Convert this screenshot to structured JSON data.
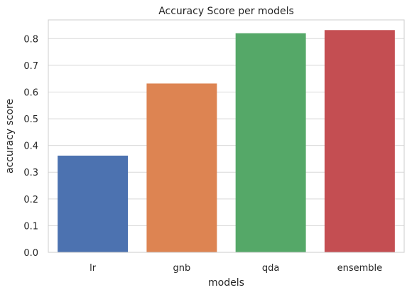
{
  "chart_data": {
    "type": "bar",
    "title": "Accuracy Score per models",
    "xlabel": "models",
    "ylabel": "accuracy score",
    "categories": [
      "lr",
      "gnb",
      "qda",
      "ensemble"
    ],
    "values": [
      0.362,
      0.632,
      0.82,
      0.832
    ],
    "colors": [
      "#4c72b0",
      "#dd8452",
      "#55a868",
      "#c44e52"
    ],
    "ylim": [
      0,
      0.87
    ],
    "yticks": [
      0.0,
      0.1,
      0.2,
      0.3,
      0.4,
      0.5,
      0.6,
      0.7,
      0.8
    ],
    "ytick_labels": [
      "0.0",
      "0.1",
      "0.2",
      "0.3",
      "0.4",
      "0.5",
      "0.6",
      "0.7",
      "0.8"
    ],
    "grid": "horizontal",
    "legend": "none",
    "style": {
      "background": "#ffffff",
      "grid_color": "#d9d9d9",
      "spine_color": "#cccccc",
      "text_color": "#262626"
    }
  }
}
